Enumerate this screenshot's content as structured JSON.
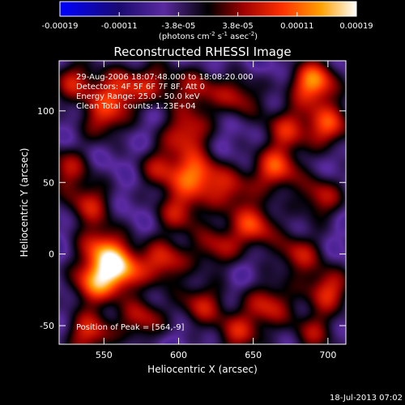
{
  "chart_data": {
    "type": "heatmap",
    "title": "Reconstructed RHESSI Image",
    "xlabel": "Heliocentric X (arcsec)",
    "ylabel": "Heliocentric Y (arcsec)",
    "xlim": [
      520,
      712
    ],
    "ylim": [
      -63,
      135
    ],
    "xticks": [
      550,
      600,
      650,
      700
    ],
    "yticks": [
      -50,
      0,
      50,
      100
    ],
    "annotations": [
      "29-Aug-2006 18:07:48.000 to 18:08:20.000",
      "Detectors: 4F 5F 6F 7F 8F, Att 0",
      "Energy Range: 25.0 - 50.0 keV",
      "Clean    Total counts: 1.23E+04"
    ],
    "peak_label": "Position of Peak = [564,-9]",
    "colorbar": {
      "tick_labels": [
        "-0.00019",
        "-0.00011",
        "-3.8e-05",
        "3.8e-05",
        "0.00011",
        "0.00019"
      ],
      "range": [
        -0.00019,
        0.00019
      ],
      "label_base": "(photons cm",
      "label_exp1": "-2",
      "label_mid": " s",
      "label_exp2": "-1",
      "label_mid2": " asec",
      "label_exp3": "-2",
      "label_end": ")"
    },
    "sources": [
      {
        "x": 560,
        "y": -10,
        "a": 1.0
      },
      {
        "x": 543,
        "y": -20,
        "a": 0.8
      },
      {
        "x": 548,
        "y": 5,
        "a": 0.7
      },
      {
        "x": 575,
        "y": -45,
        "a": 0.6
      },
      {
        "x": 540,
        "y": -55,
        "a": 0.7
      },
      {
        "x": 590,
        "y": -5,
        "a": 0.7
      },
      {
        "x": 615,
        "y": -35,
        "a": 0.6
      },
      {
        "x": 612,
        "y": 55,
        "a": 0.85
      },
      {
        "x": 605,
        "y": 85,
        "a": 0.7
      },
      {
        "x": 600,
        "y": 30,
        "a": 0.6
      },
      {
        "x": 588,
        "y": 60,
        "a": 0.55
      },
      {
        "x": 540,
        "y": 35,
        "a": 0.6
      },
      {
        "x": 525,
        "y": 60,
        "a": 0.55
      },
      {
        "x": 550,
        "y": 95,
        "a": 0.6
      },
      {
        "x": 560,
        "y": 115,
        "a": 0.65
      },
      {
        "x": 530,
        "y": 120,
        "a": 0.6
      },
      {
        "x": 635,
        "y": 45,
        "a": 0.55
      },
      {
        "x": 650,
        "y": 20,
        "a": 0.75
      },
      {
        "x": 665,
        "y": 60,
        "a": 0.8
      },
      {
        "x": 690,
        "y": 120,
        "a": 1.0
      },
      {
        "x": 700,
        "y": 90,
        "a": 0.75
      },
      {
        "x": 695,
        "y": 40,
        "a": 0.6
      },
      {
        "x": 680,
        "y": 0,
        "a": 0.6
      },
      {
        "x": 700,
        "y": -25,
        "a": 0.7
      },
      {
        "x": 660,
        "y": -35,
        "a": 0.65
      },
      {
        "x": 640,
        "y": -55,
        "a": 0.6
      },
      {
        "x": 625,
        "y": 5,
        "a": 0.55
      },
      {
        "x": 640,
        "y": 110,
        "a": 0.55
      },
      {
        "x": 672,
        "y": 88,
        "a": 0.6
      },
      {
        "x": 583,
        "y": 120,
        "a": 0.5
      },
      {
        "x": 690,
        "y": -55,
        "a": 0.5
      },
      {
        "x": 612,
        "y": 115,
        "a": 0.55
      }
    ]
  },
  "footer": {
    "timestamp": "18-Jul-2013 07:02"
  }
}
